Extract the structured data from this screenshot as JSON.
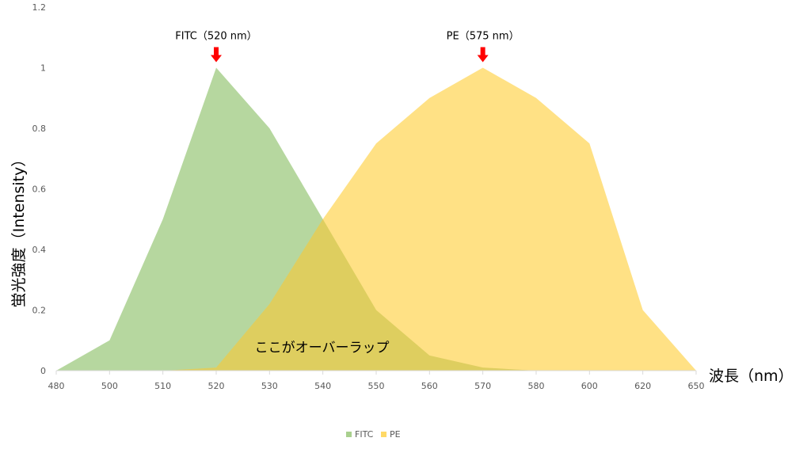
{
  "chart_data": {
    "type": "area",
    "x": [
      480,
      500,
      510,
      520,
      530,
      540,
      550,
      560,
      570,
      580,
      600,
      620,
      650
    ],
    "x_tick_labels": [
      "480",
      "500",
      "510",
      "520",
      "530",
      "540",
      "550",
      "560",
      "570",
      "580",
      "600",
      "620",
      "650"
    ],
    "y_ticks": [
      0,
      0.2,
      0.4,
      0.6,
      0.8,
      1,
      1.2
    ],
    "y_tick_labels": [
      "0",
      "0.2",
      "0.4",
      "0.6",
      "0.8",
      "1",
      "1.2"
    ],
    "ylim": [
      0,
      1.2
    ],
    "xlabel": "波長（nm）",
    "ylabel": "蛍光強度（Intensity）",
    "series": [
      {
        "name": "FITC",
        "color": "#a9d08e",
        "values": [
          0,
          0.1,
          0.5,
          1.0,
          0.8,
          0.5,
          0.2,
          0.05,
          0.01,
          0,
          0,
          0,
          0
        ]
      },
      {
        "name": "PE",
        "color": "#ffd966",
        "values": [
          0,
          0,
          0,
          0.01,
          0.22,
          0.5,
          0.75,
          0.9,
          1.0,
          0.9,
          0.75,
          0.2,
          0
        ]
      }
    ],
    "annotations": [
      {
        "text": "FITC（520 nm）",
        "x": 520,
        "y": 1.0,
        "arrow_color": "#ff0000"
      },
      {
        "text": "PE（575 nm）",
        "x": 570,
        "y": 1.0,
        "arrow_color": "#ff0000"
      },
      {
        "text": "ここがオーバーラップ",
        "x": 540,
        "y": 0.08
      }
    ],
    "overlap_color": "#c8c04a",
    "legend_position": "bottom",
    "grid": false
  }
}
